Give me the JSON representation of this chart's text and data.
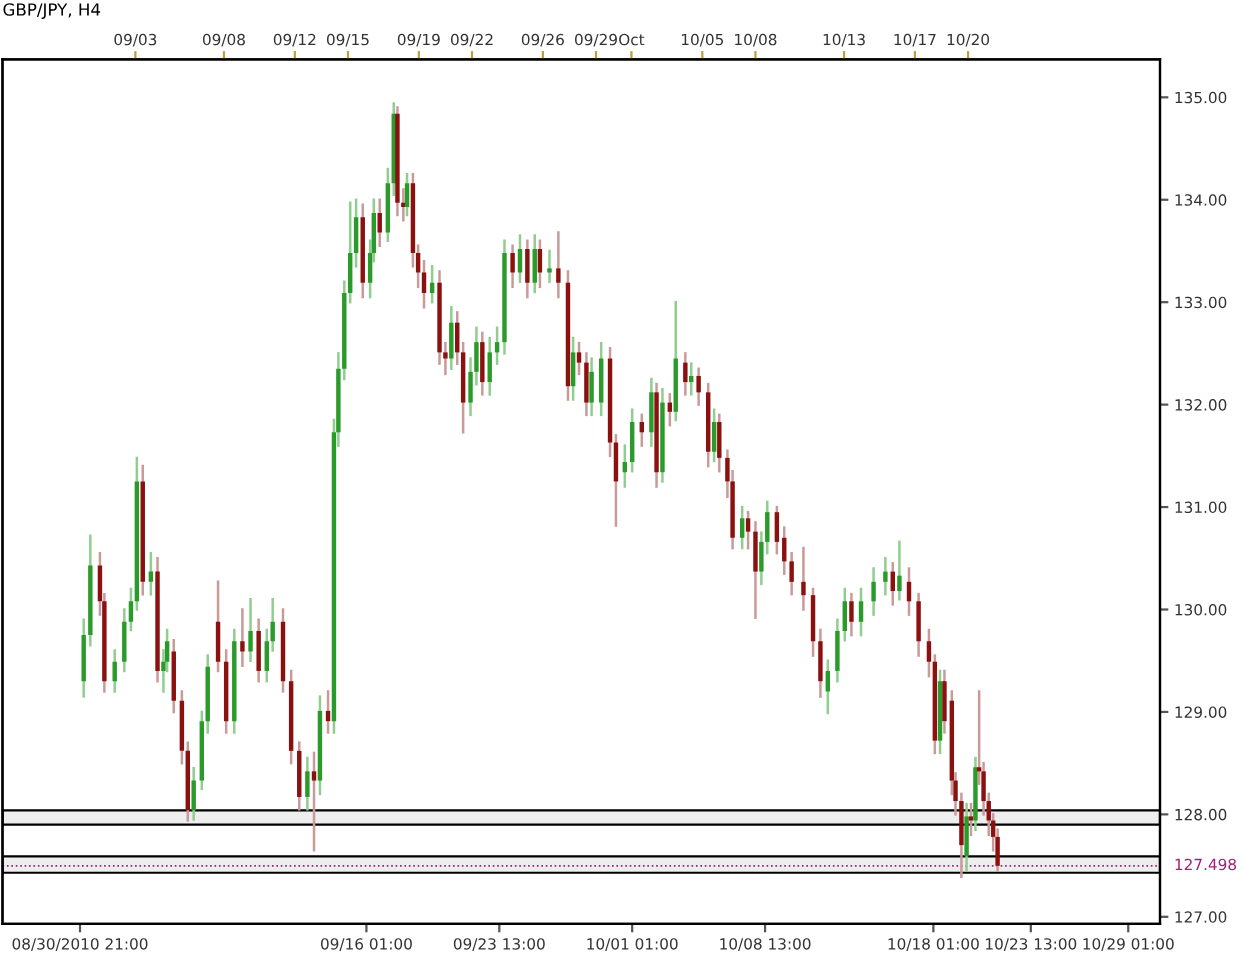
{
  "chart_data": {
    "type": "candlestick",
    "title": "GBP/JPY, H4",
    "x": [
      "2010-08-31T02:00",
      "2010-08-31T11:00",
      "2010-09-01T00:00",
      "2010-09-01T06:00",
      "2010-09-01T20:00",
      "2010-09-02T09:00",
      "2010-09-02T18:00",
      "2010-09-03T02:00",
      "2010-09-03T10:00",
      "2010-09-03T21:00",
      "2010-09-04T06:00",
      "2010-09-04T14:00",
      "2010-09-04T19:00",
      "2010-09-05T04:00",
      "2010-09-05T15:00",
      "2010-09-05T23:00",
      "2010-09-06T07:00",
      "2010-09-06T18:00",
      "2010-09-07T02:00",
      "2010-09-07T16:00",
      "2010-09-08T03:00",
      "2010-09-08T14:00",
      "2010-09-09T01:00",
      "2010-09-09T12:00",
      "2010-09-09T23:00",
      "2010-09-10T10:00",
      "2010-09-10T18:00",
      "2010-09-11T08:00",
      "2010-09-11T19:00",
      "2010-09-12T06:00",
      "2010-09-12T17:00",
      "2010-09-13T02:00",
      "2010-09-13T10:00",
      "2010-09-13T21:00",
      "2010-09-14T05:00",
      "2010-09-14T11:00",
      "2010-09-14T19:00",
      "2010-09-15T03:00",
      "2010-09-15T11:00",
      "2010-09-15T20:00",
      "2010-09-16T06:00",
      "2010-09-16T11:00",
      "2010-09-16T19:00",
      "2010-09-17T06:00",
      "2010-09-17T14:00",
      "2010-09-17T19:00",
      "2010-09-18T03:00",
      "2010-09-18T08:00",
      "2010-09-18T16:00",
      "2010-09-18T23:00",
      "2010-09-19T07:00",
      "2010-09-19T18:00",
      "2010-09-20T04:00",
      "2010-09-20T12:00",
      "2010-09-20T20:00",
      "2010-09-21T04:00",
      "2010-09-21T12:00",
      "2010-09-21T22:00",
      "2010-09-22T06:00",
      "2010-09-22T14:00",
      "2010-09-23T00:00",
      "2010-09-23T10:00",
      "2010-09-23T20:00",
      "2010-09-24T07:00",
      "2010-09-24T17:00",
      "2010-09-25T03:00",
      "2010-09-25T13:00",
      "2010-09-25T20:00",
      "2010-09-26T09:00",
      "2010-09-26T21:00",
      "2010-09-27T10:00",
      "2010-09-27T17:00",
      "2010-09-28T01:00",
      "2010-09-28T11:00",
      "2010-09-28T18:00",
      "2010-09-29T07:00",
      "2010-09-29T19:00",
      "2010-09-30T03:00",
      "2010-09-30T15:00",
      "2010-10-01T01:00",
      "2010-10-01T14:00",
      "2010-10-02T03:00",
      "2010-10-02T10:00",
      "2010-10-02T18:00",
      "2010-10-03T04:00",
      "2010-10-03T12:00",
      "2010-10-04T01:00",
      "2010-10-04T09:00",
      "2010-10-04T19:00",
      "2010-10-05T08:00",
      "2010-10-05T16:00",
      "2010-10-05T23:00",
      "2010-10-06T10:00",
      "2010-10-06T17:00",
      "2010-10-07T06:00",
      "2010-10-07T14:00",
      "2010-10-08T00:00",
      "2010-10-08T08:00",
      "2010-10-08T16:00",
      "2010-10-09T05:00",
      "2010-10-09T15:00",
      "2010-10-10T01:00",
      "2010-10-10T17:00",
      "2010-10-11T06:00",
      "2010-10-11T16:00",
      "2010-10-12T02:00",
      "2010-10-12T15:00",
      "2010-10-13T01:00",
      "2010-10-13T10:00",
      "2010-10-13T23:00",
      "2010-10-14T16:00",
      "2010-10-15T08:00",
      "2010-10-15T18:00",
      "2010-10-16T03:00",
      "2010-10-16T16:00",
      "2010-10-17T05:00",
      "2010-10-17T19:00",
      "2010-10-18T03:00",
      "2010-10-18T10:00",
      "2010-10-18T16:00",
      "2010-10-19T02:00",
      "2010-10-19T07:00",
      "2010-10-19T15:00",
      "2010-10-19T22:00",
      "2010-10-20T04:00",
      "2010-10-20T10:00",
      "2010-10-20T15:00",
      "2010-10-20T21:00",
      "2010-10-21T04:00",
      "2010-10-21T10:00",
      "2010-10-21T16:00"
    ],
    "ohlc": [
      [
        129.3,
        129.9,
        129.15,
        129.75
      ],
      [
        129.75,
        130.72,
        129.65,
        130.43
      ],
      [
        130.43,
        130.55,
        129.95,
        130.08
      ],
      [
        130.08,
        130.15,
        129.2,
        129.3
      ],
      [
        129.3,
        129.6,
        129.2,
        129.49
      ],
      [
        129.49,
        130.0,
        129.4,
        129.88
      ],
      [
        129.88,
        130.2,
        129.8,
        130.08
      ],
      [
        130.08,
        131.48,
        130.0,
        131.25
      ],
      [
        131.25,
        131.4,
        130.15,
        130.27
      ],
      [
        130.27,
        130.55,
        130.15,
        130.37
      ],
      [
        130.37,
        130.5,
        129.3,
        129.4
      ],
      [
        129.4,
        129.6,
        129.2,
        129.49
      ],
      [
        129.49,
        129.8,
        129.4,
        129.69
      ],
      [
        129.59,
        129.7,
        129.0,
        129.11
      ],
      [
        129.11,
        129.2,
        128.5,
        128.62
      ],
      [
        128.62,
        128.7,
        127.94,
        128.04
      ],
      [
        128.04,
        128.45,
        127.95,
        128.33
      ],
      [
        128.33,
        129.0,
        128.25,
        128.91
      ],
      [
        128.91,
        129.55,
        128.8,
        129.44
      ],
      [
        129.88,
        130.27,
        129.4,
        129.49
      ],
      [
        129.49,
        129.6,
        128.8,
        128.91
      ],
      [
        128.91,
        129.8,
        128.8,
        129.69
      ],
      [
        129.69,
        130.0,
        129.45,
        129.59
      ],
      [
        129.59,
        130.1,
        129.5,
        129.79
      ],
      [
        129.79,
        129.9,
        129.3,
        129.4
      ],
      [
        129.4,
        129.8,
        129.3,
        129.69
      ],
      [
        129.69,
        130.1,
        129.6,
        129.88
      ],
      [
        129.88,
        130.0,
        129.2,
        129.3
      ],
      [
        129.3,
        129.4,
        128.5,
        128.62
      ],
      [
        128.62,
        128.7,
        128.05,
        128.17
      ],
      [
        128.17,
        128.55,
        128.05,
        128.42
      ],
      [
        128.42,
        128.6,
        127.65,
        128.33
      ],
      [
        128.33,
        129.15,
        128.2,
        129.01
      ],
      [
        129.01,
        129.2,
        128.8,
        128.91
      ],
      [
        128.91,
        131.85,
        128.8,
        131.73
      ],
      [
        131.73,
        132.5,
        131.6,
        132.35
      ],
      [
        132.35,
        133.2,
        132.25,
        133.09
      ],
      [
        133.09,
        133.97,
        133.0,
        133.48
      ],
      [
        133.48,
        134.0,
        133.35,
        133.83
      ],
      [
        133.83,
        133.95,
        133.05,
        133.19
      ],
      [
        133.19,
        133.6,
        133.05,
        133.48
      ],
      [
        133.48,
        134.0,
        133.4,
        133.87
      ],
      [
        133.87,
        134.0,
        133.55,
        133.68
      ],
      [
        133.68,
        134.3,
        133.6,
        134.16
      ],
      [
        134.16,
        134.94,
        134.05,
        134.84
      ],
      [
        134.84,
        134.9,
        133.85,
        133.97
      ],
      [
        133.97,
        134.1,
        133.8,
        133.93
      ],
      [
        133.93,
        134.25,
        133.85,
        134.16
      ],
      [
        134.16,
        134.25,
        133.35,
        133.48
      ],
      [
        133.48,
        133.55,
        133.15,
        133.29
      ],
      [
        133.29,
        133.4,
        132.95,
        133.09
      ],
      [
        133.09,
        133.35,
        133.0,
        133.19
      ],
      [
        133.19,
        133.3,
        132.4,
        132.51
      ],
      [
        132.51,
        132.6,
        132.3,
        132.45
      ],
      [
        132.45,
        132.95,
        132.35,
        132.8
      ],
      [
        132.8,
        132.9,
        132.4,
        132.51
      ],
      [
        132.51,
        132.6,
        131.73,
        132.02
      ],
      [
        132.02,
        132.45,
        131.9,
        132.32
      ],
      [
        132.32,
        132.75,
        132.2,
        132.61
      ],
      [
        132.61,
        132.7,
        132.1,
        132.22
      ],
      [
        132.22,
        132.65,
        132.1,
        132.51
      ],
      [
        132.51,
        132.75,
        132.4,
        132.61
      ],
      [
        132.61,
        133.6,
        132.5,
        133.48
      ],
      [
        133.48,
        133.55,
        133.15,
        133.29
      ],
      [
        133.29,
        133.65,
        133.2,
        133.52
      ],
      [
        133.52,
        133.6,
        133.05,
        133.19
      ],
      [
        133.19,
        133.65,
        133.1,
        133.52
      ],
      [
        133.52,
        133.6,
        133.15,
        133.29
      ],
      [
        133.29,
        133.5,
        133.2,
        133.33
      ],
      [
        133.33,
        133.68,
        133.05,
        133.19
      ],
      [
        133.19,
        133.3,
        132.05,
        132.18
      ],
      [
        132.18,
        132.65,
        132.05,
        132.51
      ],
      [
        132.51,
        132.6,
        132.3,
        132.41
      ],
      [
        132.41,
        132.5,
        131.9,
        132.02
      ],
      [
        132.02,
        132.45,
        131.9,
        132.32
      ],
      [
        132.02,
        132.6,
        131.9,
        132.45
      ],
      [
        132.45,
        132.55,
        131.5,
        131.63
      ],
      [
        131.63,
        131.7,
        130.82,
        131.25
      ],
      [
        131.34,
        131.6,
        131.2,
        131.44
      ],
      [
        131.44,
        131.95,
        131.35,
        131.83
      ],
      [
        131.83,
        131.9,
        131.6,
        131.73
      ],
      [
        131.73,
        132.25,
        131.6,
        132.12
      ],
      [
        132.12,
        132.2,
        131.2,
        131.34
      ],
      [
        131.34,
        132.15,
        131.25,
        132.02
      ],
      [
        132.02,
        132.1,
        131.8,
        131.93
      ],
      [
        131.93,
        133.0,
        131.85,
        132.45
      ],
      [
        132.41,
        132.5,
        132.1,
        132.22
      ],
      [
        132.22,
        132.4,
        132.1,
        132.28
      ],
      [
        132.28,
        132.35,
        132.0,
        132.12
      ],
      [
        132.12,
        132.2,
        131.4,
        131.54
      ],
      [
        131.54,
        131.95,
        131.45,
        131.83
      ],
      [
        131.83,
        131.9,
        131.35,
        131.48
      ],
      [
        131.48,
        131.55,
        131.1,
        131.25
      ],
      [
        131.25,
        131.35,
        130.6,
        130.7
      ],
      [
        130.7,
        131.0,
        130.6,
        130.89
      ],
      [
        130.89,
        130.95,
        130.6,
        130.76
      ],
      [
        130.76,
        130.85,
        129.92,
        130.37
      ],
      [
        130.37,
        130.75,
        130.25,
        130.66
      ],
      [
        130.66,
        131.05,
        130.55,
        130.95
      ],
      [
        130.95,
        131.0,
        130.55,
        130.66
      ],
      [
        130.7,
        130.8,
        130.35,
        130.47
      ],
      [
        130.47,
        130.55,
        130.15,
        130.27
      ],
      [
        130.27,
        130.6,
        130.0,
        130.14
      ],
      [
        130.14,
        130.2,
        129.55,
        129.69
      ],
      [
        129.69,
        129.8,
        129.15,
        129.3
      ],
      [
        129.2,
        129.5,
        128.99,
        129.4
      ],
      [
        129.4,
        129.9,
        129.3,
        129.79
      ],
      [
        129.79,
        130.2,
        129.7,
        130.08
      ],
      [
        130.08,
        130.15,
        129.75,
        129.88
      ],
      [
        129.88,
        130.2,
        129.75,
        130.08
      ],
      [
        130.08,
        130.4,
        129.95,
        130.27
      ],
      [
        130.27,
        130.5,
        130.15,
        130.37
      ],
      [
        130.37,
        130.45,
        130.05,
        130.18
      ],
      [
        130.18,
        130.66,
        130.1,
        130.33
      ],
      [
        130.27,
        130.4,
        129.95,
        130.08
      ],
      [
        130.08,
        130.15,
        129.55,
        129.69
      ],
      [
        129.69,
        129.8,
        129.35,
        129.49
      ],
      [
        129.49,
        129.55,
        128.6,
        128.72
      ],
      [
        128.72,
        129.4,
        128.6,
        129.3
      ],
      [
        129.3,
        129.4,
        128.8,
        128.91
      ],
      [
        129.11,
        129.2,
        128.2,
        128.33
      ],
      [
        128.33,
        128.4,
        128.0,
        128.13
      ],
      [
        128.13,
        128.2,
        127.39,
        127.7
      ],
      [
        127.59,
        128.1,
        127.45,
        127.98
      ],
      [
        127.98,
        128.1,
        127.8,
        127.94
      ],
      [
        127.94,
        128.55,
        127.85,
        128.46
      ],
      [
        128.46,
        129.2,
        128.3,
        128.42
      ],
      [
        128.42,
        128.5,
        128.0,
        128.13
      ],
      [
        128.13,
        128.2,
        127.8,
        127.94
      ],
      [
        127.94,
        128.0,
        127.65,
        127.78
      ],
      [
        127.78,
        127.85,
        127.45,
        127.498
      ]
    ],
    "xlim": [
      "2010-08-26T12:00",
      "2010-10-30T20:00"
    ],
    "xticks": [
      {
        "value": "2010-08-30T21:00",
        "label": "08/30/2010 21:00"
      },
      {
        "value": "2010-09-16T01:00",
        "label": "09/16 01:00"
      },
      {
        "value": "2010-09-23T13:00",
        "label": "09/23 13:00"
      },
      {
        "value": "2010-10-01T01:00",
        "label": "10/01 01:00"
      },
      {
        "value": "2010-10-08T13:00",
        "label": "10/08 13:00"
      },
      {
        "value": "2010-10-18T01:00",
        "label": "10/18 01:00"
      },
      {
        "value": "2010-10-23T13:00",
        "label": "10/23 13:00"
      },
      {
        "value": "2010-10-29T01:00",
        "label": "10/29 01:00"
      }
    ],
    "x2lim": [
      "2010-08-26T12:00",
      "2010-10-30T20:00"
    ],
    "x2ticks": [
      {
        "value": "2010-09-03",
        "label": "09/03"
      },
      {
        "value": "2010-09-08",
        "label": "09/08"
      },
      {
        "value": "2010-09-12",
        "label": "09/12"
      },
      {
        "value": "2010-09-15",
        "label": "09/15"
      },
      {
        "value": "2010-09-19",
        "label": "09/19"
      },
      {
        "value": "2010-09-22",
        "label": "09/22"
      },
      {
        "value": "2010-09-26",
        "label": "09/26"
      },
      {
        "value": "2010-09-29",
        "label": "09/29"
      },
      {
        "value": "2010-10-01",
        "label": "Oct"
      },
      {
        "value": "2010-10-05",
        "label": "10/05"
      },
      {
        "value": "2010-10-08",
        "label": "10/08"
      },
      {
        "value": "2010-10-13",
        "label": "10/13"
      },
      {
        "value": "2010-10-17",
        "label": "10/17"
      },
      {
        "value": "2010-10-20",
        "label": "10/20"
      }
    ],
    "ylim": [
      126.93,
      135.37
    ],
    "yticks": [
      {
        "value": 127,
        "label": "127.00"
      },
      {
        "value": 128,
        "label": "128.00"
      },
      {
        "value": 129,
        "label": "129.00"
      },
      {
        "value": 130,
        "label": "130.00"
      },
      {
        "value": 131,
        "label": "131.00"
      },
      {
        "value": 132,
        "label": "132.00"
      },
      {
        "value": 133,
        "label": "133.00"
      },
      {
        "value": 134,
        "label": "134.00"
      },
      {
        "value": 135,
        "label": "135.00"
      }
    ],
    "ref_lines": [
      {
        "axis": "y",
        "value": 127.498,
        "label": "127.498",
        "color": "#a0207a",
        "line_style": "dotted"
      }
    ],
    "bands": [
      {
        "axis": "y",
        "from": 127.43,
        "to": 127.59,
        "color": "#eeeeee"
      },
      {
        "axis": "y",
        "from": 127.9,
        "to": 128.04,
        "color": "#eeeeee"
      }
    ],
    "grid": false,
    "legend": false
  }
}
